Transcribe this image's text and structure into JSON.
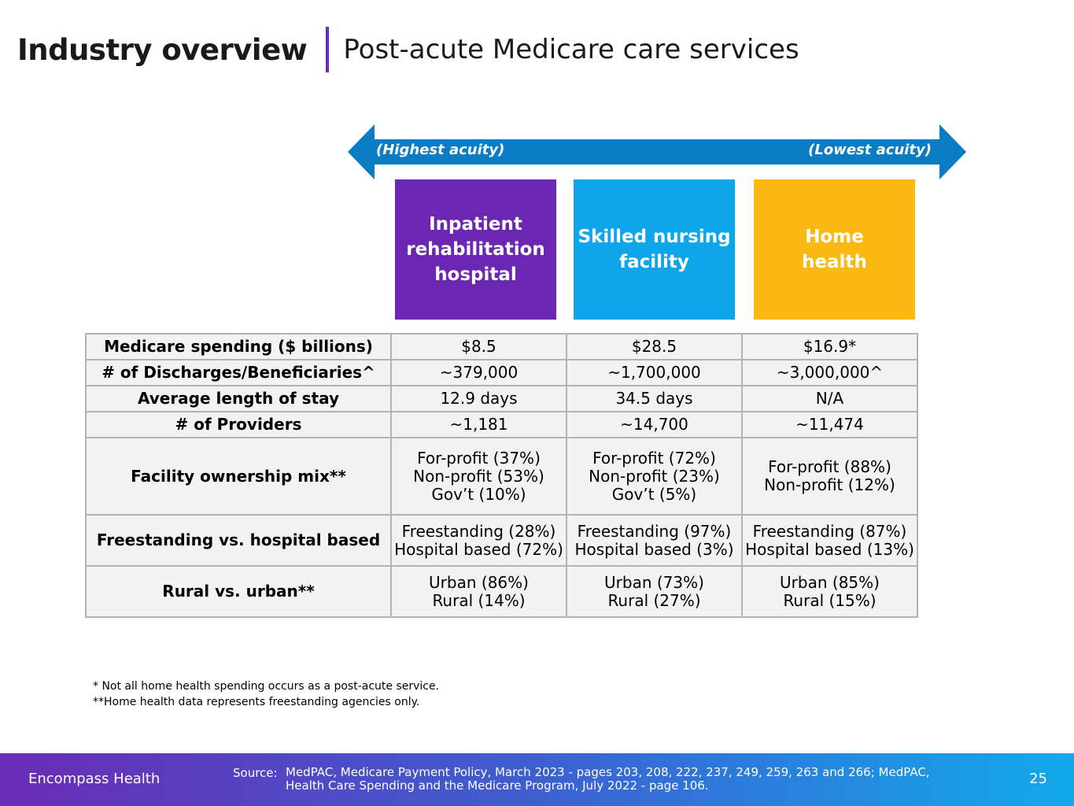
{
  "header": {
    "title": "Industry overview",
    "subtitle": "Post-acute Medicare care services"
  },
  "acuity_arrow": {
    "left_label": "(Highest acuity)",
    "right_label": "(Lowest acuity)",
    "color": "#0a7cc4"
  },
  "categories": [
    {
      "label": "Inpatient\nrehabilitation\nhospital",
      "color": "#6b27b3"
    },
    {
      "label": "Skilled nursing\nfacility",
      "color": "#0ea5ea"
    },
    {
      "label": "Home\nhealth",
      "color": "#fbb812"
    }
  ],
  "table": {
    "rows": [
      {
        "label": "Medicare spending ($ billions)",
        "values": [
          "$8.5",
          "$28.5",
          "$16.9*"
        ]
      },
      {
        "label": "# of Discharges/Beneficiaries^",
        "values": [
          "~379,000",
          "~1,700,000",
          "~3,000,000^"
        ]
      },
      {
        "label": "Average length of stay",
        "values": [
          "12.9 days",
          "34.5 days",
          "N/A"
        ]
      },
      {
        "label": "# of Providers",
        "values": [
          "~1,181",
          "~14,700",
          "~11,474"
        ]
      },
      {
        "label": "Facility ownership mix**",
        "values": [
          "For-profit (37%)\nNon-profit (53%)\nGov’t (10%)",
          "For-profit (72%)\nNon-profit (23%)\nGov’t (5%)",
          "For-profit (88%)\nNon-profit (12%)"
        ]
      },
      {
        "label": "Freestanding vs. hospital based",
        "values": [
          "Freestanding (28%)\nHospital based (72%)",
          "Freestanding (97%)\nHospital based (3%)",
          "Freestanding (87%)\nHospital based (13%)"
        ]
      },
      {
        "label": "Rural vs. urban**",
        "values": [
          "Urban (86%)\nRural (14%)",
          "Urban (73%)\nRural (27%)",
          "Urban (85%)\nRural (15%)"
        ]
      }
    ]
  },
  "footnotes": [
    "* Not all home health spending occurs as a post-acute service.",
    "**Home health data represents freestanding agencies only."
  ],
  "footer": {
    "brand": "Encompass Health",
    "source_label": "Source:",
    "source_text": "MedPAC, Medicare Payment Policy, March 2023 - pages 203, 208, 222, 237, 249, 259, 263 and 266; MedPAC,\nHealth Care Spending and the Medicare Program,  July 2022 - page 106.",
    "page_number": "25"
  }
}
